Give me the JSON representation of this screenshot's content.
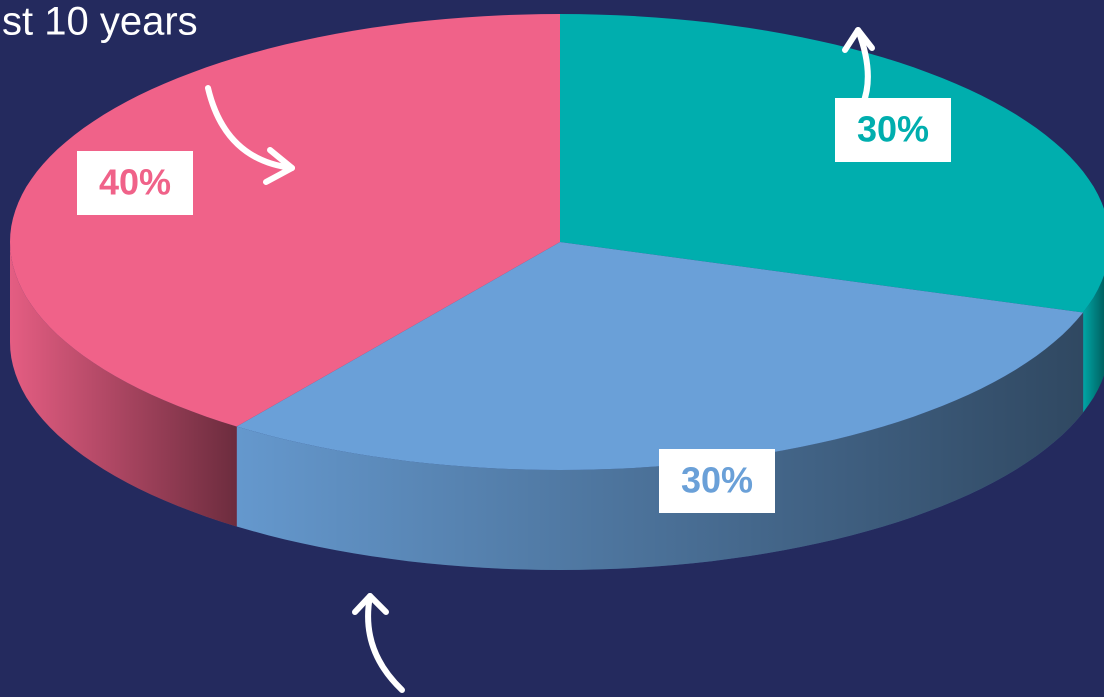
{
  "chart_data": {
    "type": "pie",
    "title": "st 10 years",
    "values": [
      30,
      30,
      40
    ],
    "value_labels": [
      "30%",
      "30%",
      "40%"
    ],
    "colors": [
      "#00aeae",
      "#6aa0d8",
      "#f06289"
    ]
  }
}
